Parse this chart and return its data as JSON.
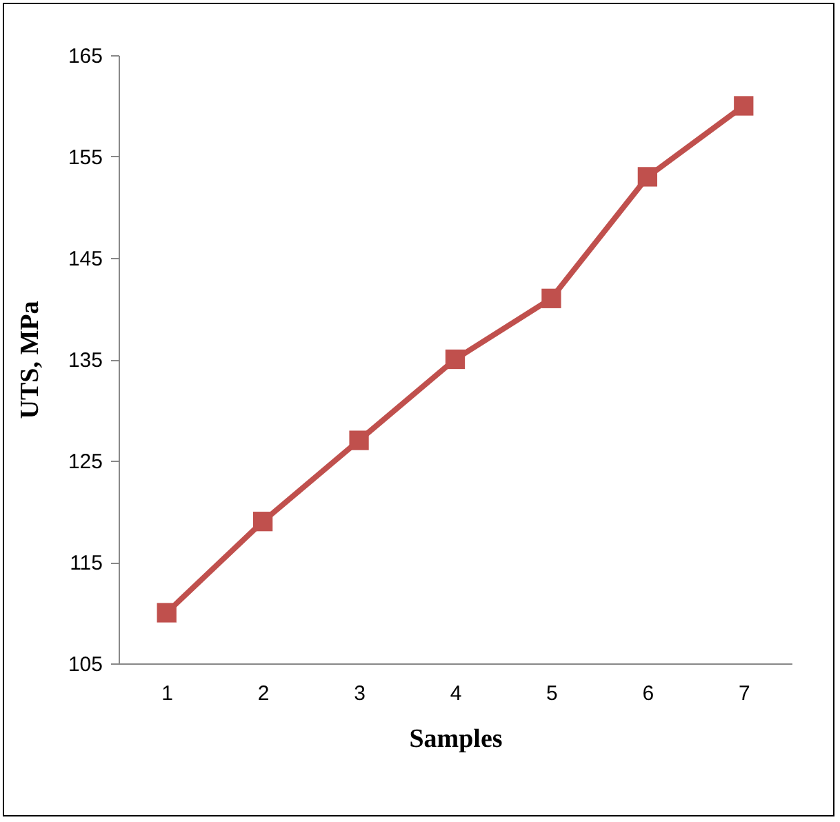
{
  "chart_data": {
    "type": "line",
    "xlabel": "Samples",
    "ylabel": "UTS, MPa",
    "categories": [
      "1",
      "2",
      "3",
      "4",
      "5",
      "6",
      "7"
    ],
    "series": [
      {
        "color": "#c0504d",
        "values": [
          110,
          119,
          127,
          135,
          141,
          153,
          160
        ]
      }
    ],
    "ylim": [
      105,
      165
    ],
    "yticks": [
      105,
      115,
      125,
      135,
      145,
      155,
      165
    ],
    "grid": false,
    "legend": false,
    "marker": "square",
    "line_style": "solid"
  }
}
